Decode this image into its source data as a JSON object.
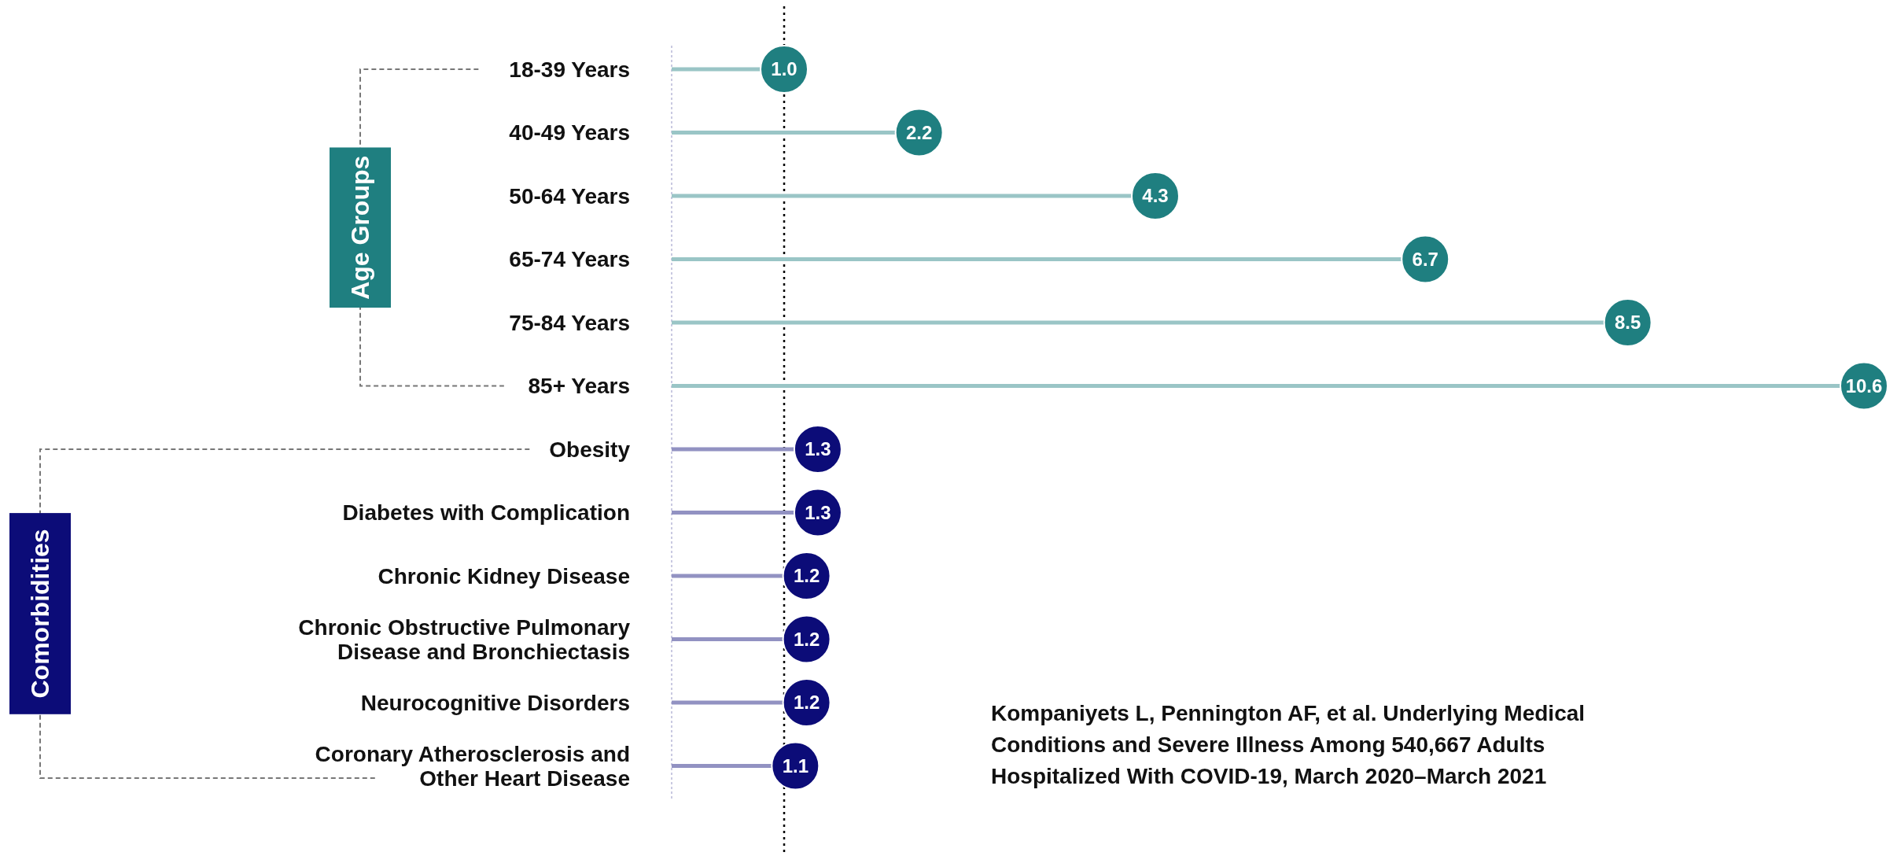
{
  "chart_data": {
    "type": "lollipop",
    "orientation": "horizontal",
    "categories": [
      "18-39 Years",
      "40-49 Years",
      "50-64 Years",
      "65-74 Years",
      "75-84 Years",
      "85+ Years",
      "Obesity",
      "Diabetes with Complication",
      "Chronic Kidney Disease",
      "Chronic Obstructive Pulmonary\nDisease and Bronchiectasis",
      "Neurocognitive Disorders",
      "Coronary Atherosclerosis and\nOther Heart Disease"
    ],
    "values": [
      1.0,
      2.2,
      4.3,
      6.7,
      8.5,
      10.6,
      1.3,
      1.3,
      1.2,
      1.2,
      1.2,
      1.1
    ],
    "colors": [
      "#1f7f80",
      "#1f7f80",
      "#1f7f80",
      "#1f7f80",
      "#1f7f80",
      "#1f7f80",
      "#0c0c78",
      "#0c0c78",
      "#0c0c78",
      "#0c0c78",
      "#0c0c78",
      "#0c0c78"
    ],
    "value_labels": [
      "1.0",
      "2.2",
      "4.3",
      "6.7",
      "8.5",
      "10.6",
      "1.3",
      "1.3",
      "1.2",
      "1.2",
      "1.2",
      "1.1"
    ],
    "marker": "circle",
    "tick_labels": "y",
    "ref_lines": [
      {
        "axis": "x",
        "value": 1.0,
        "color": "#000000",
        "line_style": "dotted"
      }
    ],
    "annotations": [
      "Age Groups",
      "Comorbidities",
      "Kompaniyets L, Pennington AF, et al. Underlying Medical Conditions and Severe Illness Among 540,667 Adults Hospitalized With COVID-19, March 2020–March 2021"
    ]
  }
}
